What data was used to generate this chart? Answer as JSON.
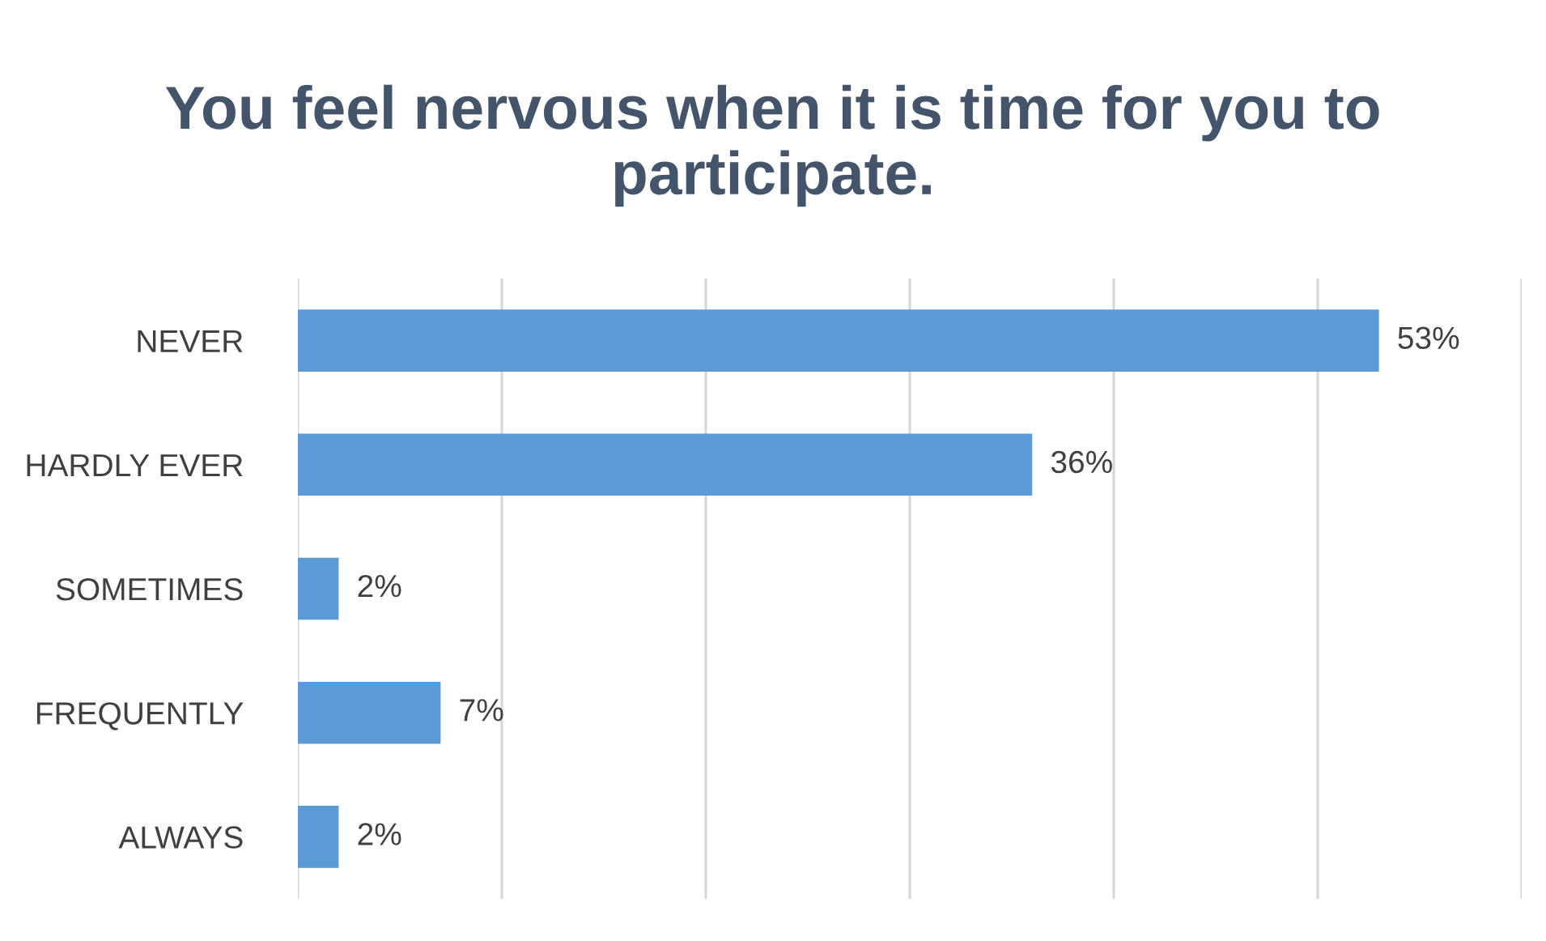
{
  "chart_data": {
    "type": "bar",
    "orientation": "horizontal",
    "title": "You feel nervous when it is time for you to participate.",
    "categories": [
      "NEVER",
      "HARDLY EVER",
      "SOMETIMES",
      "FREQUENTLY",
      "ALWAYS"
    ],
    "values": [
      53,
      36,
      2,
      7,
      2
    ],
    "color": "#5b9bd5",
    "value_labels": [
      "53%",
      "36%",
      "2%",
      "7%",
      "2%"
    ],
    "xlim": [
      0,
      60
    ],
    "xticks": [
      {
        "value": 0,
        "label": null
      },
      {
        "value": 10,
        "label": null
      },
      {
        "value": 20,
        "label": null
      },
      {
        "value": 30,
        "label": null
      },
      {
        "value": 40,
        "label": null
      },
      {
        "value": 50,
        "label": null
      },
      {
        "value": 60,
        "label": null
      }
    ],
    "tick_labels": "y",
    "grid": "x",
    "legend": false
  }
}
